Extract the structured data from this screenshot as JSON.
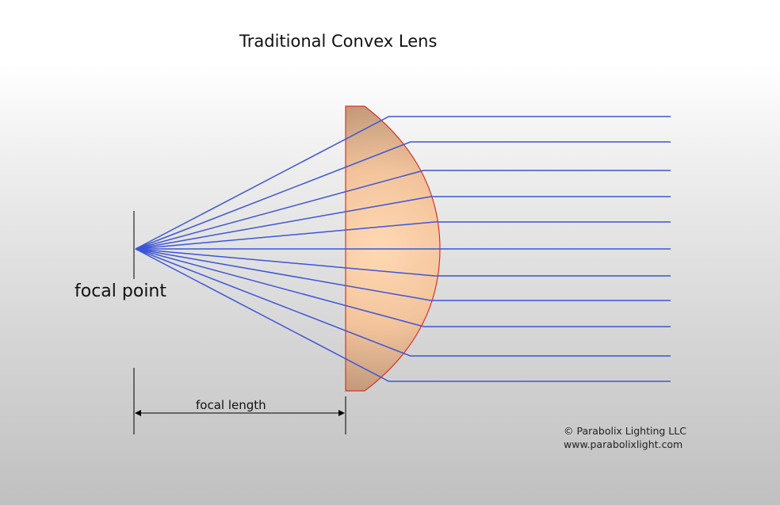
{
  "title": "Traditional Convex Lens",
  "labels": {
    "focal_point": "focal point",
    "focal_length": "focal length"
  },
  "credit": {
    "copyright": "© Parabolix Lighting LLC",
    "website": "www.parabolixlight.com"
  },
  "colors": {
    "ray": "#3d55d6",
    "lens_outline": "#e03020",
    "lens_fill_center": "#ffd7b0",
    "lens_fill_edge": "#c8a080",
    "annotation": "#000000"
  },
  "rays": {
    "count": 11
  }
}
